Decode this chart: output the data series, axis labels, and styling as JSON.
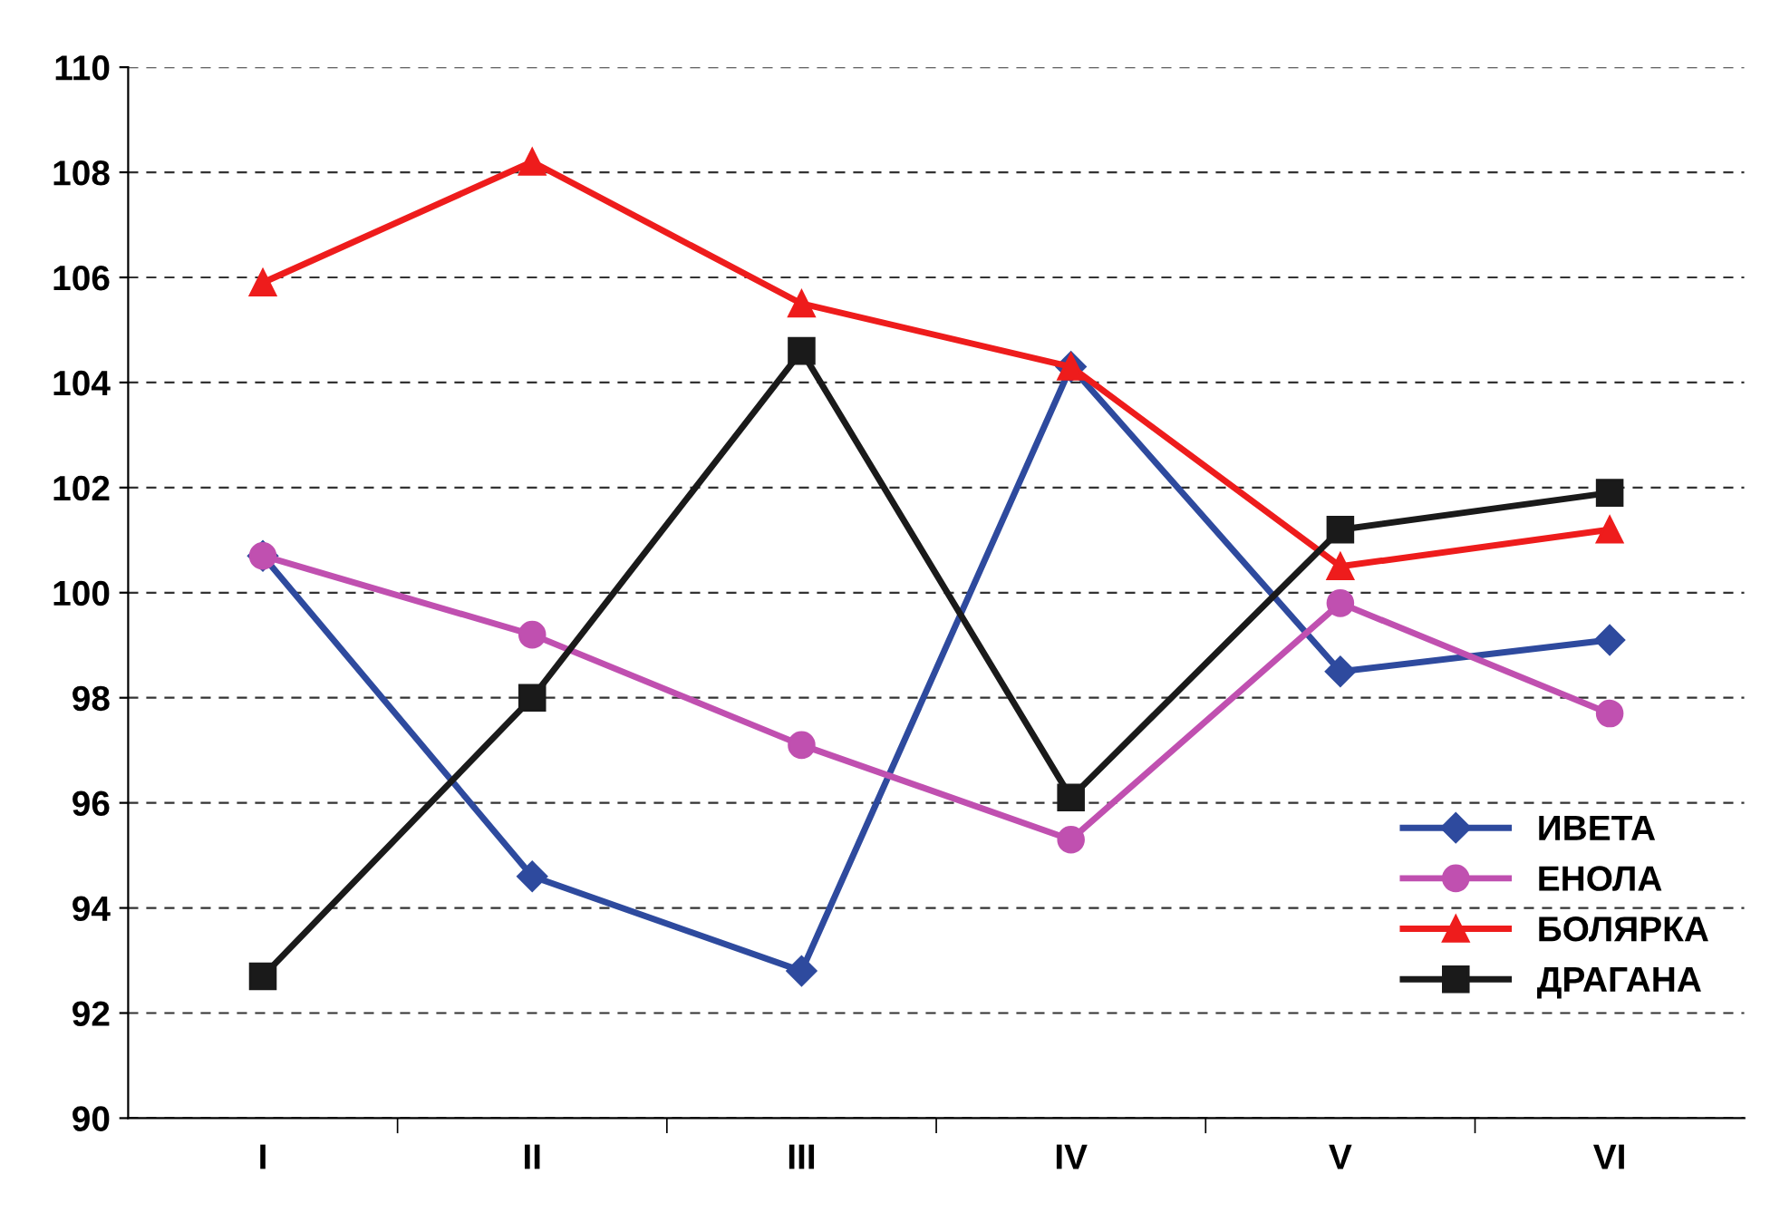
{
  "chart_data": {
    "type": "line",
    "categories": [
      "I",
      "II",
      "III",
      "IV",
      "V",
      "VI"
    ],
    "series": [
      {
        "name": "ИВЕТА",
        "color": "#2e4a9e",
        "marker": "diamond",
        "values": [
          100.7,
          94.6,
          92.8,
          104.3,
          98.5,
          99.1
        ]
      },
      {
        "name": "ЕНОЛА",
        "color": "#c050b0",
        "marker": "circle",
        "values": [
          100.7,
          99.2,
          97.1,
          95.3,
          99.8,
          97.7
        ]
      },
      {
        "name": "БОЛЯРКА",
        "color": "#ee1c1c",
        "marker": "triangle",
        "values": [
          105.9,
          108.2,
          105.5,
          104.3,
          100.5,
          101.2
        ]
      },
      {
        "name": "ДРАГАНА",
        "color": "#1a1a1a",
        "marker": "square",
        "values": [
          92.7,
          98.0,
          104.6,
          96.1,
          101.2,
          101.9
        ]
      }
    ],
    "ylim": [
      90,
      110
    ],
    "yticks": [
      90,
      92,
      94,
      96,
      98,
      100,
      102,
      104,
      106,
      108,
      110
    ],
    "grid": "y",
    "line_style": "solid",
    "legend": "bottom right"
  }
}
